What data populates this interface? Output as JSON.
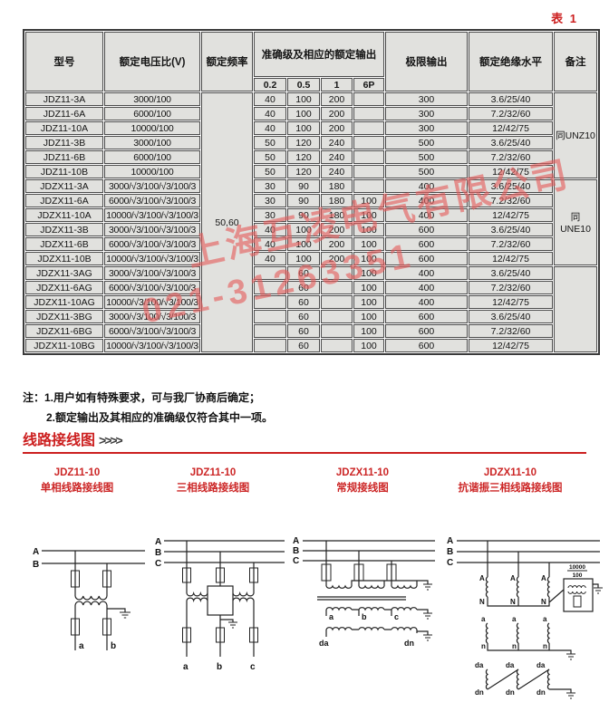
{
  "page": {
    "table_tag": "表 1",
    "notes": {
      "line1": "注：1.用户如有特殊要求，可与我厂协商后确定；",
      "line2": "2.额定输出及其相应的准确级仅符合其中一项。"
    },
    "section_title": "线路接线图",
    "section_arrows": ">>>>"
  },
  "watermark": {
    "line1": "上海互凌电气有限公司",
    "line2": "021-31263351",
    "color": "#e45c5c"
  },
  "table": {
    "headers": {
      "model": "型号",
      "voltage_ratio": "额定电压比(V)",
      "frequency": "额定频率",
      "accuracy_group": "准确级及相应的额定输出",
      "accuracy_classes": [
        "0.2",
        "0.5",
        "1",
        "6P"
      ],
      "limit_output": "极限输出",
      "insulation": "额定绝缘水平",
      "remark": "备注"
    },
    "frequency_value": "50,60",
    "rows": [
      {
        "model": "JDZ11-3A",
        "ratio": "3000/100",
        "c02": "40",
        "c05": "100",
        "c1": "200",
        "c6p": "",
        "limit": "300",
        "insulation": "3.6/25/40"
      },
      {
        "model": "JDZ11-6A",
        "ratio": "6000/100",
        "c02": "40",
        "c05": "100",
        "c1": "200",
        "c6p": "",
        "limit": "300",
        "insulation": "7.2/32/60"
      },
      {
        "model": "JDZ11-10A",
        "ratio": "10000/100",
        "c02": "40",
        "c05": "100",
        "c1": "200",
        "c6p": "",
        "limit": "300",
        "insulation": "12/42/75"
      },
      {
        "model": "JDZ11-3B",
        "ratio": "3000/100",
        "c02": "50",
        "c05": "120",
        "c1": "240",
        "c6p": "",
        "limit": "500",
        "insulation": "3.6/25/40"
      },
      {
        "model": "JDZ11-6B",
        "ratio": "6000/100",
        "c02": "50",
        "c05": "120",
        "c1": "240",
        "c6p": "",
        "limit": "500",
        "insulation": "7.2/32/60"
      },
      {
        "model": "JDZ11-10B",
        "ratio": "10000/100",
        "c02": "50",
        "c05": "120",
        "c1": "240",
        "c6p": "",
        "limit": "500",
        "insulation": "12/42/75"
      },
      {
        "model": "JDZX11-3A",
        "ratio": "3000/√3/100/√3/100/3",
        "c02": "30",
        "c05": "90",
        "c1": "180",
        "c6p": "",
        "limit": "400",
        "insulation": "3.6/25/40"
      },
      {
        "model": "JDZX11-6A",
        "ratio": "6000/√3/100/√3/100/3",
        "c02": "30",
        "c05": "90",
        "c1": "180",
        "c6p": "100",
        "limit": "400",
        "insulation": "7.2/32/60"
      },
      {
        "model": "JDZX11-10A",
        "ratio": "10000/√3/100/√3/100/3",
        "c02": "30",
        "c05": "90",
        "c1": "180",
        "c6p": "100",
        "limit": "400",
        "insulation": "12/42/75"
      },
      {
        "model": "JDZX11-3B",
        "ratio": "3000/√3/100/√3/100/3",
        "c02": "40",
        "c05": "100",
        "c1": "200",
        "c6p": "100",
        "limit": "600",
        "insulation": "3.6/25/40"
      },
      {
        "model": "JDZX11-6B",
        "ratio": "6000/√3/100/√3/100/3",
        "c02": "40",
        "c05": "100",
        "c1": "200",
        "c6p": "100",
        "limit": "600",
        "insulation": "7.2/32/60"
      },
      {
        "model": "JDZX11-10B",
        "ratio": "10000/√3/100/√3/100/3",
        "c02": "40",
        "c05": "100",
        "c1": "200",
        "c6p": "100",
        "limit": "600",
        "insulation": "12/42/75"
      },
      {
        "model": "JDZX11-3AG",
        "ratio": "3000/√3/100/√3/100/3",
        "c02": "",
        "c05": "60",
        "c1": "",
        "c6p": "100",
        "limit": "400",
        "insulation": "3.6/25/40"
      },
      {
        "model": "JDZX11-6AG",
        "ratio": "6000/√3/100/√3/100/3",
        "c02": "",
        "c05": "60",
        "c1": "",
        "c6p": "100",
        "limit": "400",
        "insulation": "7.2/32/60"
      },
      {
        "model": "JDZX11-10AG",
        "ratio": "10000/√3/100/√3/100/3",
        "c02": "",
        "c05": "60",
        "c1": "",
        "c6p": "100",
        "limit": "400",
        "insulation": "12/42/75"
      },
      {
        "model": "JDZX11-3BG",
        "ratio": "3000/√3/100/√3/100/3",
        "c02": "",
        "c05": "60",
        "c1": "",
        "c6p": "100",
        "limit": "600",
        "insulation": "3.6/25/40"
      },
      {
        "model": "JDZX11-6BG",
        "ratio": "6000/√3/100/√3/100/3",
        "c02": "",
        "c05": "60",
        "c1": "",
        "c6p": "100",
        "limit": "600",
        "insulation": "7.2/32/60"
      },
      {
        "model": "JDZX11-10BG",
        "ratio": "10000/√3/100/√3/100/3",
        "c02": "",
        "c05": "60",
        "c1": "",
        "c6p": "100",
        "limit": "600",
        "insulation": "12/42/75"
      }
    ],
    "remarks": [
      "同UNZ10",
      "同UNE10",
      ""
    ]
  },
  "diagram_titles": [
    {
      "model": "JDZ11-10",
      "name": "单相线路接线图"
    },
    {
      "model": "JDZ11-10",
      "name": "三相线路接线图"
    },
    {
      "model": "JDZX11-10",
      "name": "常规接线图"
    },
    {
      "model": "JDZX11-10",
      "name": "抗谐振三相线路接线图"
    }
  ],
  "diagrams": {
    "d1": {
      "phases": [
        "A",
        "B"
      ],
      "sec": [
        "a",
        "b"
      ]
    },
    "d2": {
      "phases": [
        "A",
        "B",
        "C"
      ],
      "sec": [
        "a",
        "b",
        "c"
      ]
    },
    "d3": {
      "phases": [
        "A",
        "B",
        "C"
      ],
      "sec": [
        "a",
        "b",
        "c"
      ],
      "tert": [
        "da",
        "dn"
      ]
    },
    "d4": {
      "phases": [
        "A",
        "B",
        "C"
      ],
      "w1_top": "A",
      "w1_bot": "N",
      "frac_top": "10000",
      "frac_bot": "100",
      "w2_top": "a",
      "w2_bot": "n",
      "w3_top": "da",
      "w3_bot": "dn"
    }
  }
}
